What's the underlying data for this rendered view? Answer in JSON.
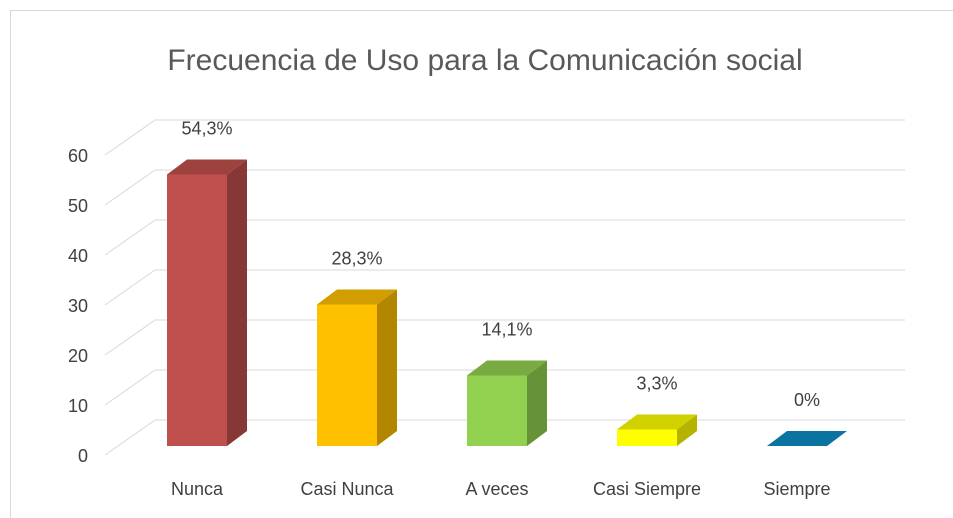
{
  "chart_data": {
    "type": "bar3d",
    "title": "Frecuencia de Uso para la Comunicación social",
    "categories": [
      "Nunca",
      "Casi Nunca",
      "A veces",
      "Casi Siempre",
      "Siempre"
    ],
    "values": [
      54.3,
      28.3,
      14.1,
      3.3,
      0
    ],
    "value_labels": [
      "54,3%",
      "28,3%",
      "14,1%",
      "3,3%",
      "0%"
    ],
    "colors": [
      "#c0504d",
      "#ffc000",
      "#92d050",
      "#ffff00",
      "#0e8cc2"
    ],
    "ylim": [
      0,
      60
    ],
    "yticks": [
      0,
      10,
      20,
      30,
      40,
      50,
      60
    ],
    "grid": true
  }
}
